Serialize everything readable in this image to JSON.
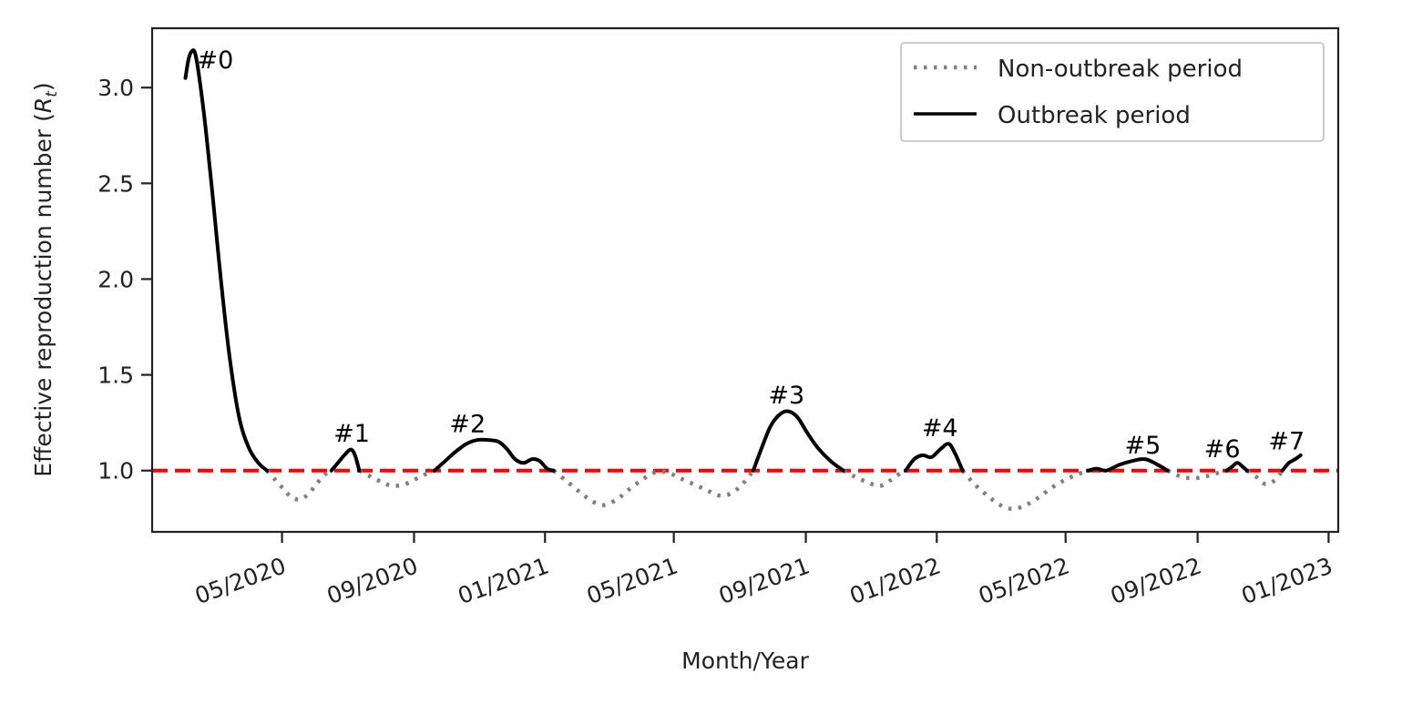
{
  "chart_data": {
    "type": "line",
    "title": "",
    "xlabel": "Month/Year",
    "ylabel": "Effective reproduction number (R_t)",
    "ylabel_main": "Effective reproduction number (",
    "ylabel_symbol": "R",
    "ylabel_subscript": "t",
    "ylabel_close": ")",
    "x_ticks": [
      "05/2020",
      "09/2020",
      "01/2021",
      "05/2021",
      "09/2021",
      "01/2022",
      "05/2022",
      "09/2022",
      "01/2023"
    ],
    "y_ticks": [
      "1.0",
      "1.5",
      "2.0",
      "2.5",
      "3.0"
    ],
    "x_range": [
      "2020-01-01",
      "2023-01-10"
    ],
    "ylim": [
      0.68,
      3.31
    ],
    "grid": false,
    "legend_position": "top-right",
    "reference_line": {
      "y": 1.0,
      "color": "#ff0000",
      "style": "dashed"
    },
    "series": [
      {
        "name": "Non-outbreak period",
        "style": "dotted",
        "color": "#808080",
        "segments": [
          [
            [
              "2020-04-17",
              1.0
            ],
            [
              "2020-04-25",
              0.95
            ],
            [
              "2020-05-03",
              0.9
            ],
            [
              "2020-05-10",
              0.86
            ],
            [
              "2020-05-18",
              0.85
            ],
            [
              "2020-05-26",
              0.88
            ],
            [
              "2020-06-02",
              0.93
            ],
            [
              "2020-06-10",
              0.98
            ],
            [
              "2020-06-16",
              1.0
            ]
          ],
          [
            [
              "2020-07-12",
              1.0
            ],
            [
              "2020-07-22",
              0.97
            ],
            [
              "2020-08-02",
              0.94
            ],
            [
              "2020-08-12",
              0.92
            ],
            [
              "2020-08-24",
              0.93
            ],
            [
              "2020-09-04",
              0.96
            ],
            [
              "2020-09-15",
              0.99
            ],
            [
              "2020-09-20",
              1.0
            ]
          ],
          [
            [
              "2021-01-09",
              1.0
            ],
            [
              "2021-01-20",
              0.95
            ],
            [
              "2021-02-02",
              0.89
            ],
            [
              "2021-02-14",
              0.84
            ],
            [
              "2021-02-25",
              0.82
            ],
            [
              "2021-03-09",
              0.85
            ],
            [
              "2021-03-20",
              0.9
            ],
            [
              "2021-04-01",
              0.95
            ],
            [
              "2021-04-13",
              0.99
            ],
            [
              "2021-04-25",
              0.99
            ],
            [
              "2021-05-07",
              0.96
            ],
            [
              "2021-05-19",
              0.93
            ],
            [
              "2021-05-31",
              0.9
            ],
            [
              "2021-06-12",
              0.87
            ],
            [
              "2021-06-23",
              0.88
            ],
            [
              "2021-07-04",
              0.93
            ],
            [
              "2021-07-14",
              1.0
            ]
          ],
          [
            [
              "2021-10-06",
              1.0
            ],
            [
              "2021-10-16",
              0.97
            ],
            [
              "2021-10-28",
              0.94
            ],
            [
              "2021-11-09",
              0.92
            ],
            [
              "2021-11-19",
              0.95
            ],
            [
              "2021-11-29",
              0.99
            ],
            [
              "2021-12-03",
              1.0
            ]
          ],
          [
            [
              "2022-01-25",
              1.0
            ],
            [
              "2022-02-05",
              0.93
            ],
            [
              "2022-02-17",
              0.87
            ],
            [
              "2022-03-01",
              0.82
            ],
            [
              "2022-03-13",
              0.8
            ],
            [
              "2022-03-25",
              0.82
            ],
            [
              "2022-04-06",
              0.86
            ],
            [
              "2022-04-18",
              0.91
            ],
            [
              "2022-04-30",
              0.95
            ],
            [
              "2022-05-12",
              0.98
            ],
            [
              "2022-05-22",
              1.0
            ]
          ],
          [
            [
              "2022-08-04",
              1.0
            ],
            [
              "2022-08-16",
              0.97
            ],
            [
              "2022-08-28",
              0.96
            ],
            [
              "2022-09-09",
              0.97
            ],
            [
              "2022-09-21",
              0.99
            ],
            [
              "2022-09-28",
              1.0
            ]
          ],
          [
            [
              "2022-10-17",
              1.0
            ],
            [
              "2022-10-25",
              0.97
            ],
            [
              "2022-11-03",
              0.93
            ],
            [
              "2022-11-12",
              0.95
            ],
            [
              "2022-11-19",
              1.0
            ]
          ]
        ]
      },
      {
        "name": "Outbreak period",
        "style": "solid",
        "color": "#000000",
        "segments": [
          [
            [
              "2020-02-01",
              3.05
            ],
            [
              "2020-02-04",
              3.15
            ],
            [
              "2020-02-07",
              3.19
            ],
            [
              "2020-02-10",
              3.18
            ],
            [
              "2020-02-14",
              3.05
            ],
            [
              "2020-02-20",
              2.78
            ],
            [
              "2020-02-27",
              2.4
            ],
            [
              "2020-03-05",
              2.0
            ],
            [
              "2020-03-13",
              1.6
            ],
            [
              "2020-03-22",
              1.28
            ],
            [
              "2020-03-31",
              1.12
            ],
            [
              "2020-04-09",
              1.04
            ],
            [
              "2020-04-17",
              1.0
            ]
          ],
          [
            [
              "2020-06-16",
              1.0
            ],
            [
              "2020-06-22",
              1.04
            ],
            [
              "2020-06-28",
              1.08
            ],
            [
              "2020-07-04",
              1.11
            ],
            [
              "2020-07-08",
              1.08
            ],
            [
              "2020-07-12",
              1.0
            ]
          ],
          [
            [
              "2020-09-20",
              1.0
            ],
            [
              "2020-09-30",
              1.05
            ],
            [
              "2020-10-10",
              1.1
            ],
            [
              "2020-10-20",
              1.14
            ],
            [
              "2020-10-30",
              1.16
            ],
            [
              "2020-11-09",
              1.16
            ],
            [
              "2020-11-19",
              1.15
            ],
            [
              "2020-11-27",
              1.11
            ],
            [
              "2020-12-04",
              1.06
            ],
            [
              "2020-12-12",
              1.04
            ],
            [
              "2020-12-20",
              1.06
            ],
            [
              "2020-12-27",
              1.05
            ],
            [
              "2021-01-03",
              1.01
            ],
            [
              "2021-01-09",
              1.0
            ]
          ],
          [
            [
              "2021-07-14",
              1.0
            ],
            [
              "2021-07-22",
              1.12
            ],
            [
              "2021-07-30",
              1.23
            ],
            [
              "2021-08-07",
              1.29
            ],
            [
              "2021-08-15",
              1.31
            ],
            [
              "2021-08-24",
              1.28
            ],
            [
              "2021-09-02",
              1.2
            ],
            [
              "2021-09-12",
              1.12
            ],
            [
              "2021-09-24",
              1.05
            ],
            [
              "2021-10-06",
              1.0
            ]
          ],
          [
            [
              "2021-12-03",
              1.0
            ],
            [
              "2021-12-11",
              1.06
            ],
            [
              "2021-12-19",
              1.08
            ],
            [
              "2021-12-27",
              1.07
            ],
            [
              "2022-01-04",
              1.11
            ],
            [
              "2022-01-12",
              1.14
            ],
            [
              "2022-01-18",
              1.09
            ],
            [
              "2022-01-25",
              1.0
            ]
          ],
          [
            [
              "2022-05-22",
              1.0
            ],
            [
              "2022-05-30",
              1.01
            ],
            [
              "2022-06-08",
              1.0
            ],
            [
              "2022-06-20",
              1.03
            ],
            [
              "2022-07-02",
              1.05
            ],
            [
              "2022-07-14",
              1.06
            ],
            [
              "2022-07-26",
              1.03
            ],
            [
              "2022-08-04",
              1.0
            ]
          ],
          [
            [
              "2022-09-28",
              1.0
            ],
            [
              "2022-10-03",
              1.02
            ],
            [
              "2022-10-08",
              1.04
            ],
            [
              "2022-10-13",
              1.02
            ],
            [
              "2022-10-17",
              1.0
            ]
          ],
          [
            [
              "2022-11-19",
              1.0
            ],
            [
              "2022-11-25",
              1.04
            ],
            [
              "2022-12-01",
              1.06
            ],
            [
              "2022-12-06",
              1.08
            ]
          ]
        ]
      }
    ],
    "annotations": [
      {
        "text": "#0",
        "x": "2020-02-12",
        "y": 3.1
      },
      {
        "text": "#1",
        "x": "2020-06-18",
        "y": 1.15
      },
      {
        "text": "#2",
        "x": "2020-10-04",
        "y": 1.2
      },
      {
        "text": "#3",
        "x": "2021-07-28",
        "y": 1.35
      },
      {
        "text": "#4",
        "x": "2021-12-18",
        "y": 1.18
      },
      {
        "text": "#5",
        "x": "2022-06-25",
        "y": 1.09
      },
      {
        "text": "#6",
        "x": "2022-09-07",
        "y": 1.07
      },
      {
        "text": "#7",
        "x": "2022-11-06",
        "y": 1.11
      }
    ]
  }
}
